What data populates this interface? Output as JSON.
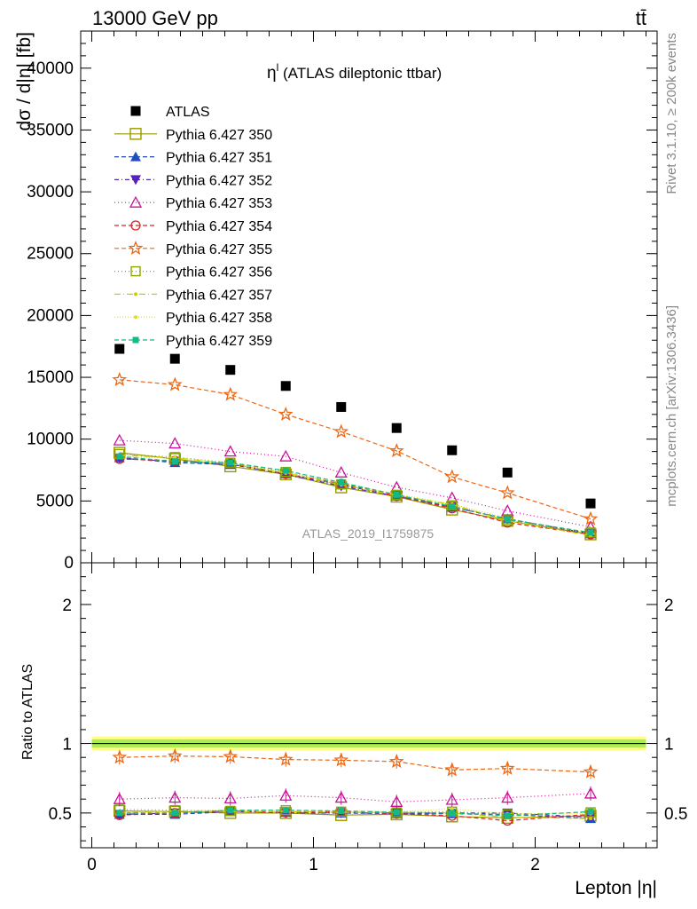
{
  "header": {
    "left": "13000 GeV pp",
    "right": "tt̄"
  },
  "side": {
    "rivet": "Rivet 3.1.10, ≥ 200k events",
    "mcplots": "mcplots.cern.ch [arXiv:1306.3436]"
  },
  "watermark": "ATLAS_2019_I1759875",
  "colors": {
    "ATLAS": "#000000",
    "350": "#999900",
    "351": "#1f4fbf",
    "352": "#5522bb",
    "353": "#cc1199",
    "354": "#dd2222",
    "355": "#ee6611",
    "356": "#88aa00",
    "357": "#cccc00",
    "358": "#dddd22",
    "359": "#11bb88",
    "band_outer": "#ffff88",
    "band_inner": "#aaee55"
  },
  "chart_data": [
    {
      "type": "scatter",
      "title": "η^l (ATLAS dileptonic ttbar)",
      "title_main": "η",
      "title_sup": "l",
      "title_rest": " (ATLAS dileptonic ttbar)",
      "ylabel": "dσ / d|η| [fb]",
      "xlabel": "",
      "xlim": [
        -0.05,
        2.55
      ],
      "ylim": [
        0,
        43000
      ],
      "y_ticks": [
        0,
        5000,
        10000,
        15000,
        20000,
        25000,
        30000,
        35000,
        40000
      ],
      "legend_position": "top-left",
      "x": [
        0.125,
        0.375,
        0.625,
        0.875,
        1.125,
        1.375,
        1.625,
        1.875,
        2.25
      ],
      "series": [
        {
          "id": "ATLAS",
          "name": "ATLAS",
          "values": [
            17300,
            16500,
            15600,
            14300,
            12600,
            10900,
            9100,
            7300,
            4800
          ]
        },
        {
          "id": "350",
          "name": "Pythia 6.427 350",
          "values": [
            8900,
            8400,
            7800,
            7150,
            6100,
            5350,
            4300,
            3400,
            2300
          ]
        },
        {
          "id": "351",
          "name": "Pythia 6.427 351",
          "values": [
            8500,
            8100,
            7950,
            7200,
            6300,
            5400,
            4500,
            3550,
            2350
          ]
        },
        {
          "id": "352",
          "name": "Pythia 6.427 352",
          "values": [
            8450,
            8200,
            8000,
            7150,
            6200,
            5400,
            4500,
            3550,
            2350
          ]
        },
        {
          "id": "353",
          "name": "Pythia 6.427 353",
          "values": [
            9900,
            9650,
            9000,
            8600,
            7300,
            6100,
            5250,
            4200,
            2900
          ]
        },
        {
          "id": "354",
          "name": "Pythia 6.427 354",
          "values": [
            8400,
            8250,
            8050,
            7200,
            6400,
            5400,
            4400,
            3250,
            2300
          ]
        },
        {
          "id": "355",
          "name": "Pythia 6.427 355",
          "values": [
            14800,
            14400,
            13600,
            12000,
            10600,
            9050,
            6950,
            5650,
            3550
          ]
        },
        {
          "id": "356",
          "name": "Pythia 6.427 356",
          "values": [
            8800,
            8550,
            8100,
            7350,
            6350,
            5500,
            4650,
            3450,
            2450
          ]
        },
        {
          "id": "357",
          "name": "Pythia 6.427 357",
          "values": [
            8700,
            8500,
            8000,
            7250,
            6300,
            5450,
            4700,
            3400,
            2200
          ]
        },
        {
          "id": "358",
          "name": "Pythia 6.427 358",
          "values": [
            8600,
            8450,
            8050,
            7300,
            6450,
            5550,
            4750,
            3600,
            2350
          ]
        },
        {
          "id": "359",
          "name": "Pythia 6.427 359",
          "values": [
            8600,
            8200,
            8100,
            7450,
            6500,
            5500,
            4550,
            3500,
            2450
          ]
        }
      ]
    },
    {
      "type": "scatter",
      "ylabel": "Ratio to ATLAS",
      "xlabel": "Lepton |η|",
      "xlim": [
        -0.05,
        2.55
      ],
      "ylim": [
        0.25,
        2.3
      ],
      "x_ticks": [
        0,
        1,
        2
      ],
      "y_ticks": [
        0.5,
        1,
        2
      ],
      "reference_line": 1,
      "band_outer": [
        0.95,
        1.05
      ],
      "band_inner": [
        0.97,
        1.03
      ],
      "x": [
        0.125,
        0.375,
        0.625,
        0.875,
        1.125,
        1.375,
        1.625,
        1.875,
        2.25
      ],
      "series": [
        {
          "id": "350",
          "name": "Pythia 6.427 350",
          "values": [
            0.515,
            0.51,
            0.5,
            0.5,
            0.485,
            0.49,
            0.475,
            0.465,
            0.48
          ]
        },
        {
          "id": "351",
          "name": "Pythia 6.427 351",
          "values": [
            0.49,
            0.49,
            0.51,
            0.505,
            0.5,
            0.495,
            0.495,
            0.49,
            0.46
          ]
        },
        {
          "id": "352",
          "name": "Pythia 6.427 352",
          "values": [
            0.49,
            0.5,
            0.515,
            0.5,
            0.5,
            0.5,
            0.5,
            0.5,
            0.47
          ]
        },
        {
          "id": "353",
          "name": "Pythia 6.427 353",
          "values": [
            0.6,
            0.61,
            0.605,
            0.625,
            0.61,
            0.58,
            0.595,
            0.61,
            0.64
          ]
        },
        {
          "id": "354",
          "name": "Pythia 6.427 354",
          "values": [
            0.485,
            0.5,
            0.515,
            0.505,
            0.51,
            0.495,
            0.48,
            0.445,
            0.49
          ]
        },
        {
          "id": "355",
          "name": "Pythia 6.427 355",
          "values": [
            0.9,
            0.91,
            0.905,
            0.885,
            0.88,
            0.87,
            0.81,
            0.82,
            0.795
          ]
        },
        {
          "id": "356",
          "name": "Pythia 6.427 356",
          "values": [
            0.525,
            0.52,
            0.515,
            0.52,
            0.51,
            0.505,
            0.51,
            0.49,
            0.505
          ]
        },
        {
          "id": "357",
          "name": "Pythia 6.427 357",
          "values": [
            0.5,
            0.515,
            0.51,
            0.51,
            0.505,
            0.505,
            0.5,
            0.47,
            0.46
          ]
        },
        {
          "id": "358",
          "name": "Pythia 6.427 358",
          "values": [
            0.51,
            0.515,
            0.52,
            0.515,
            0.515,
            0.51,
            0.53,
            0.495,
            0.495
          ]
        },
        {
          "id": "359",
          "name": "Pythia 6.427 359",
          "values": [
            0.5,
            0.5,
            0.52,
            0.52,
            0.515,
            0.505,
            0.5,
            0.48,
            0.51
          ]
        }
      ]
    }
  ]
}
